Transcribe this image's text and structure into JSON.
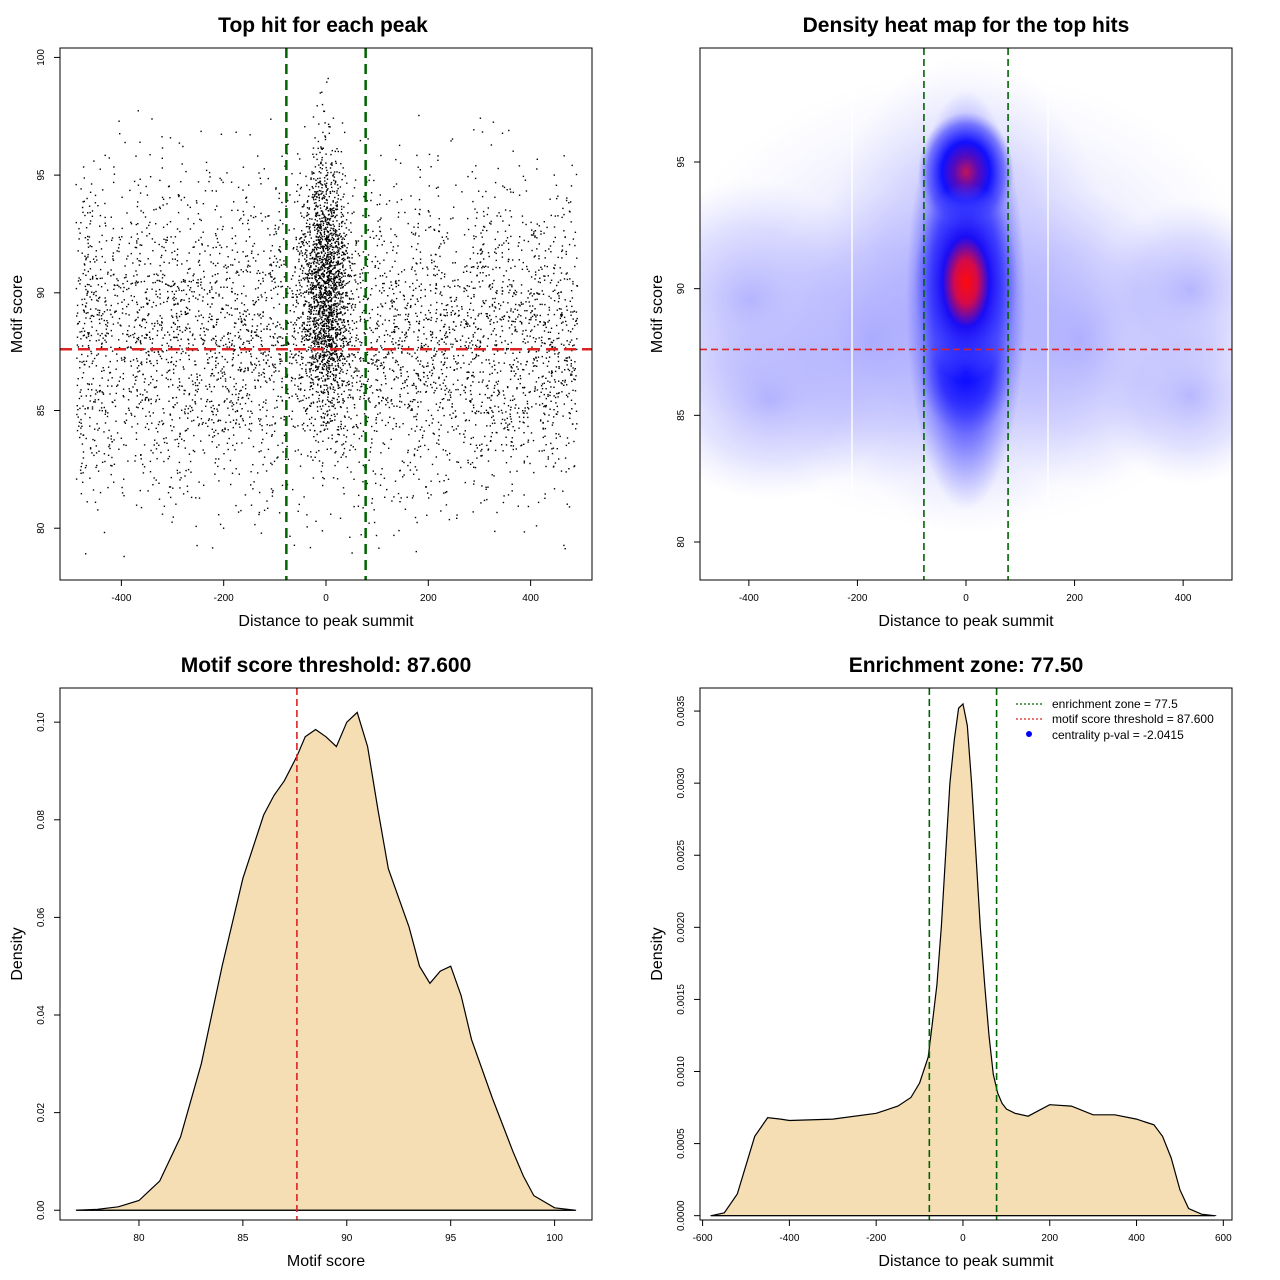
{
  "panels": {
    "scatter": {
      "title": "Top hit for each peak",
      "xlabel": "Distance to peak summit",
      "ylabel": "Motif score",
      "xticks": [
        -400,
        -200,
        0,
        200,
        400
      ],
      "yticks": [
        80,
        85,
        90,
        95,
        100
      ]
    },
    "heatmap": {
      "title": "Density heat map for the top hits",
      "xlabel": "Distance to peak summit",
      "ylabel": "Motif score",
      "xticks": [
        -400,
        -200,
        0,
        200,
        400
      ],
      "yticks": [
        80,
        85,
        90,
        95
      ]
    },
    "score_density": {
      "title": "Motif score threshold: 87.600",
      "xlabel": "Motif score",
      "ylabel": "Density",
      "xticks": [
        80,
        85,
        90,
        95,
        100
      ],
      "yticks": [
        "0.00",
        "0.02",
        "0.04",
        "0.06",
        "0.08",
        "0.10"
      ]
    },
    "dist_density": {
      "title": "Enrichment zone: 77.50",
      "xlabel": "Distance to peak summit",
      "ylabel": "Density",
      "xticks": [
        -600,
        -400,
        -200,
        0,
        200,
        400,
        600
      ],
      "yticks": [
        "0.0000",
        "0.0005",
        "0.0010",
        "0.0015",
        "0.0020",
        "0.0025",
        "0.0030",
        "0.0035"
      ],
      "legend": [
        "enrichment zone = 77.5",
        "motif score threshold = 87.600",
        "centrality p-val = -2.0415"
      ]
    }
  },
  "colors": {
    "enrichment_line": "#006400",
    "threshold_line": "#dd2222",
    "fill": "#f5deb3",
    "point": "#000000",
    "heat_low": "#ffffff",
    "heat_mid": "#0000ff",
    "heat_high": "#ff0000"
  },
  "chart_data": [
    {
      "type": "scatter",
      "title": "Top hit for each peak",
      "xlabel": "Distance to peak summit",
      "ylabel": "Motif score",
      "xlim": [
        -520,
        520
      ],
      "ylim": [
        77.8,
        100.4
      ],
      "point_count": 6500,
      "background_x_range": [
        -490,
        490
      ],
      "background_y_range": [
        78.8,
        99.2
      ],
      "central_cluster_x_sd": 22,
      "enrichment_zone": [
        -77.5,
        77.5
      ],
      "threshold": 87.6
    },
    {
      "type": "heatmap",
      "title": "Density heat map for the top hits",
      "xlabel": "Distance to peak summit",
      "ylabel": "Motif score",
      "xlim": [
        -490,
        490
      ],
      "ylim": [
        78.5,
        99.5
      ],
      "hotspots": [
        {
          "x": 0,
          "y": 90.6,
          "intensity": 1.0
        },
        {
          "x": 0,
          "y": 94.5,
          "intensity": 0.72
        },
        {
          "x": 0,
          "y": 87.5,
          "intensity": 0.55
        }
      ],
      "enrichment_zone": [
        -77.5,
        77.5
      ],
      "threshold": 87.6
    },
    {
      "type": "area",
      "title": "Motif score threshold: 87.600",
      "xlabel": "Motif score",
      "ylabel": "Density",
      "xlim": [
        76.2,
        101.8
      ],
      "ylim": [
        -0.002,
        0.107
      ],
      "x": [
        77.0,
        78.0,
        79.0,
        80.0,
        80.5,
        81.0,
        82.0,
        83.0,
        84.0,
        85.0,
        86.0,
        86.5,
        87.0,
        87.6,
        88.0,
        88.5,
        89.0,
        89.5,
        90.0,
        90.5,
        91.0,
        91.5,
        92.0,
        92.5,
        93.0,
        93.5,
        94.0,
        94.5,
        95.0,
        95.5,
        96.0,
        97.0,
        98.0,
        98.5,
        99.0,
        100.0,
        101.0
      ],
      "y": [
        0.0,
        0.0002,
        0.0007,
        0.002,
        0.004,
        0.006,
        0.015,
        0.03,
        0.05,
        0.068,
        0.081,
        0.085,
        0.088,
        0.093,
        0.097,
        0.0985,
        0.097,
        0.095,
        0.1,
        0.102,
        0.095,
        0.082,
        0.07,
        0.064,
        0.058,
        0.05,
        0.0465,
        0.049,
        0.05,
        0.044,
        0.035,
        0.023,
        0.012,
        0.007,
        0.003,
        0.0005,
        0.0
      ],
      "threshold": 87.6
    },
    {
      "type": "area",
      "title": "Enrichment zone: 77.50",
      "xlabel": "Distance to peak summit",
      "ylabel": "Density",
      "xlim": [
        -606,
        620
      ],
      "ylim": [
        -3e-05,
        0.00366
      ],
      "x": [
        -580,
        -550,
        -520,
        -500,
        -480,
        -450,
        -420,
        -400,
        -300,
        -200,
        -150,
        -120,
        -100,
        -80,
        -70,
        -60,
        -50,
        -40,
        -30,
        -20,
        -10,
        0,
        10,
        20,
        30,
        40,
        50,
        60,
        70,
        80,
        90,
        100,
        120,
        150,
        200,
        250,
        300,
        350,
        400,
        420,
        440,
        460,
        480,
        500,
        520,
        550,
        580
      ],
      "y": [
        0.0,
        2e-05,
        0.00015,
        0.00035,
        0.00055,
        0.00068,
        0.00067,
        0.00066,
        0.00067,
        0.00071,
        0.00076,
        0.00082,
        0.00092,
        0.0011,
        0.00135,
        0.0016,
        0.002,
        0.0025,
        0.003,
        0.0033,
        0.00352,
        0.00355,
        0.0034,
        0.003,
        0.0025,
        0.002,
        0.0016,
        0.00125,
        0.00098,
        0.00085,
        0.00078,
        0.00074,
        0.00071,
        0.00069,
        0.00077,
        0.00076,
        0.0007,
        0.0007,
        0.00067,
        0.00065,
        0.00063,
        0.00055,
        0.0004,
        0.00018,
        5e-05,
        1e-05,
        0.0
      ],
      "enrichment_zone": [
        -77.5,
        77.5
      ],
      "legend_position": "top-right"
    }
  ]
}
